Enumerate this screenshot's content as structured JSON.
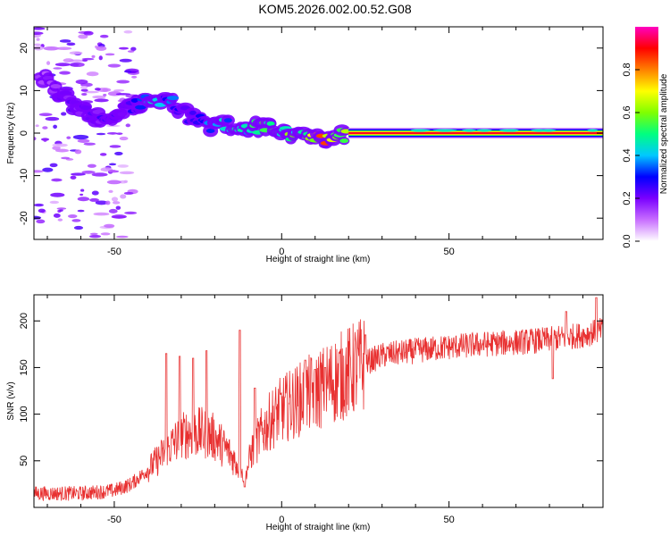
{
  "figure": {
    "title": "KOM5.2026.002.00.52.G08"
  },
  "chart_data": [
    {
      "type": "heatmap",
      "xlabel": "Height of straight line (km)",
      "ylabel": "Frequency (Hz)",
      "xlim": [
        -74,
        96
      ],
      "ylim": [
        -25,
        25
      ],
      "xticks": [
        -50,
        0,
        50
      ],
      "yticks": [
        -20,
        -10,
        0,
        10,
        20
      ],
      "colorbar": {
        "label": "Normalized spectral amplitude",
        "range": [
          0,
          1
        ],
        "ticks": [
          "0.0",
          "0.2",
          "0.4",
          "0.6",
          "0.8"
        ],
        "colors": [
          "#ffffff",
          "#c86eff",
          "#7a00ff",
          "#0000ff",
          "#00c8ff",
          "#00ff80",
          "#80ff00",
          "#ffff00",
          "#ff8000",
          "#ff0000",
          "#ff00c0"
        ]
      },
      "ridge": [
        {
          "x": -72,
          "y": 14,
          "amp": 0.15
        },
        {
          "x": -66,
          "y": 9,
          "amp": 0.2
        },
        {
          "x": -60,
          "y": 5,
          "amp": 0.22
        },
        {
          "x": -52,
          "y": 3,
          "amp": 0.25
        },
        {
          "x": -45,
          "y": 6,
          "amp": 0.3
        },
        {
          "x": -40,
          "y": 8,
          "amp": 0.45
        },
        {
          "x": -34,
          "y": 8,
          "amp": 0.35
        },
        {
          "x": -28,
          "y": 4,
          "amp": 0.3
        },
        {
          "x": -22,
          "y": 2,
          "amp": 0.35
        },
        {
          "x": -16,
          "y": 2,
          "amp": 0.45
        },
        {
          "x": -10,
          "y": 1.5,
          "amp": 0.5
        },
        {
          "x": -4,
          "y": 1,
          "amp": 0.55
        },
        {
          "x": 2,
          "y": 0,
          "amp": 0.6
        },
        {
          "x": 8,
          "y": -1,
          "amp": 0.55
        },
        {
          "x": 12,
          "y": -2,
          "amp": 0.95
        },
        {
          "x": 16,
          "y": -1,
          "amp": 0.6
        },
        {
          "x": 20,
          "y": 0,
          "amp": 0.7
        },
        {
          "x": 30,
          "y": 0,
          "amp": 0.85
        },
        {
          "x": 50,
          "y": 0,
          "amp": 0.9
        },
        {
          "x": 70,
          "y": 0,
          "amp": 0.9
        },
        {
          "x": 96,
          "y": 0,
          "amp": 0.9
        }
      ]
    },
    {
      "type": "line",
      "xlabel": "Height of straight line (km)",
      "ylabel": "SNR (v/v)",
      "xlim": [
        -74,
        96
      ],
      "ylim": [
        0,
        228
      ],
      "xticks": [
        -50,
        0,
        50
      ],
      "yticks": [
        50,
        100,
        150,
        200
      ],
      "series": [
        {
          "color": "#e83030",
          "envelope_x": [
            -74,
            -60,
            -50,
            -45,
            -40,
            -36,
            -32,
            -28,
            -24,
            -20,
            -16,
            -13,
            -11,
            -9,
            -6,
            -3,
            0,
            5,
            10,
            15,
            20,
            25,
            30,
            40,
            50,
            60,
            70,
            80,
            90,
            96
          ],
          "envelope_y": [
            15,
            15,
            18,
            25,
            40,
            55,
            70,
            80,
            80,
            75,
            60,
            45,
            30,
            60,
            80,
            95,
            105,
            115,
            125,
            135,
            145,
            155,
            163,
            168,
            172,
            175,
            177,
            180,
            185,
            190
          ],
          "spikes": [
            {
              "x": -34.5,
              "y": 165
            },
            {
              "x": -30.5,
              "y": 162
            },
            {
              "x": -26.5,
              "y": 160
            },
            {
              "x": -22.5,
              "y": 168
            },
            {
              "x": -12.5,
              "y": 190
            },
            {
              "x": -8,
              "y": 128
            },
            {
              "x": 7,
              "y": 158
            },
            {
              "x": 10,
              "y": 148
            },
            {
              "x": 13,
              "y": 150
            },
            {
              "x": 25,
              "y": 185
            },
            {
              "x": 85,
              "y": 210
            },
            {
              "x": 94,
              "y": 225
            }
          ],
          "dips": [
            {
              "x": 81,
              "y": 138
            },
            {
              "x": -11,
              "y": 22
            }
          ]
        }
      ]
    }
  ]
}
